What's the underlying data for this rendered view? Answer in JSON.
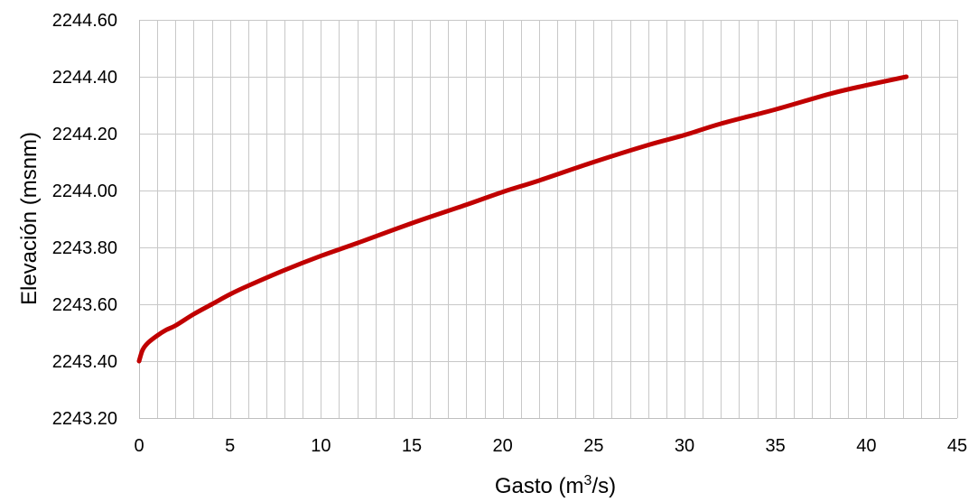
{
  "chart_data": {
    "type": "line",
    "xlabel": "Gasto (m3/s)",
    "xlabel_parts": {
      "before": "Gasto (m",
      "sup": "3",
      "after": "/s)"
    },
    "ylabel": "Elevación (msnm)",
    "xlim": [
      0,
      45
    ],
    "ylim": [
      2243.2,
      2244.6
    ],
    "x_ticks": [
      0,
      5,
      10,
      15,
      20,
      25,
      30,
      35,
      40,
      45
    ],
    "x_tick_labels": [
      "0",
      "5",
      "10",
      "15",
      "20",
      "25",
      "30",
      "35",
      "40",
      "45"
    ],
    "x_minor_step": 1,
    "y_ticks": [
      2243.2,
      2243.4,
      2243.6,
      2243.8,
      2244.0,
      2244.2,
      2244.4,
      2244.6
    ],
    "y_tick_labels": [
      "2243.20",
      "2243.40",
      "2243.60",
      "2243.80",
      "2244.00",
      "2244.20",
      "2244.40",
      "2244.60"
    ],
    "grid": true,
    "series": [
      {
        "color": "#c00000",
        "x": [
          0,
          0.2,
          0.5,
          1.0,
          1.5,
          2.0,
          3.0,
          4.0,
          5.0,
          6.0,
          8.0,
          10.0,
          12.0,
          15.0,
          18.0,
          20.0,
          22.0,
          25.0,
          28.0,
          30.0,
          32.0,
          35.0,
          38.0,
          40.0,
          42.2
        ],
        "y": [
          2243.4,
          2243.44,
          2243.465,
          2243.49,
          2243.51,
          2243.525,
          2243.565,
          2243.6,
          2243.635,
          2243.665,
          2243.72,
          2243.77,
          2243.815,
          2243.885,
          2243.95,
          2243.995,
          2244.035,
          2244.1,
          2244.16,
          2244.195,
          2244.235,
          2244.285,
          2244.34,
          2244.37,
          2244.4
        ]
      }
    ]
  }
}
